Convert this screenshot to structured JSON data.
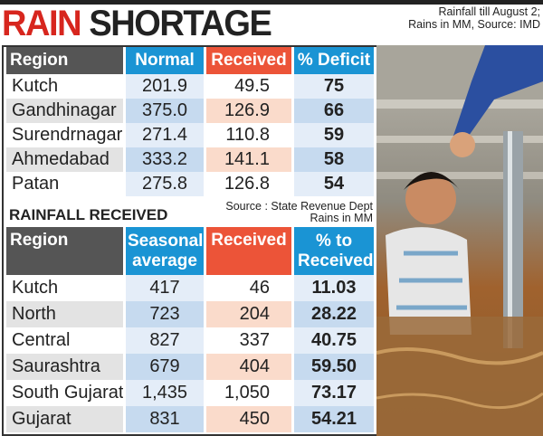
{
  "title": {
    "part1": "RAIN",
    "part2": "SHORTAGE"
  },
  "note": {
    "line1": "Rainfall till August 2;",
    "line2": "Rains in MM, Source: IMD"
  },
  "colors": {
    "title_red": "#d7261e",
    "header_blue": "#1a94d4",
    "header_orange": "#ec5438",
    "header_gray": "#555555"
  },
  "chart_data": [
    {
      "type": "table",
      "title": "RAIN SHORTAGE",
      "columns": [
        "Region",
        "Normal",
        "Received",
        "% Deficit"
      ],
      "rows": [
        [
          "Kutch",
          "201.9",
          "49.5",
          "75"
        ],
        [
          "Gandhinagar",
          "375.0",
          "126.9",
          "66"
        ],
        [
          "Surendrnagar",
          "271.4",
          "110.8",
          "59"
        ],
        [
          "Ahmedabad",
          "333.2",
          "141.1",
          "58"
        ],
        [
          "Patan",
          "275.8",
          "126.8",
          "54"
        ]
      ]
    },
    {
      "type": "table",
      "title": "RAINFALL RECEIVED",
      "source": "Source : State Revenue Dept",
      "unit_note": "Rains in MM",
      "columns": [
        "Region",
        "Seasonal average",
        "Received",
        "% to Received"
      ],
      "rows": [
        [
          "Kutch",
          "417",
          "46",
          "11.03"
        ],
        [
          "North",
          "723",
          "204",
          "28.22"
        ],
        [
          "Central",
          "827",
          "337",
          "40.75"
        ],
        [
          "Saurashtra",
          "679",
          "404",
          "59.50"
        ],
        [
          "South Gujarat",
          "1,435",
          "1,050",
          "73.17"
        ],
        [
          "Gujarat",
          "831",
          "450",
          "54.21"
        ]
      ]
    }
  ]
}
